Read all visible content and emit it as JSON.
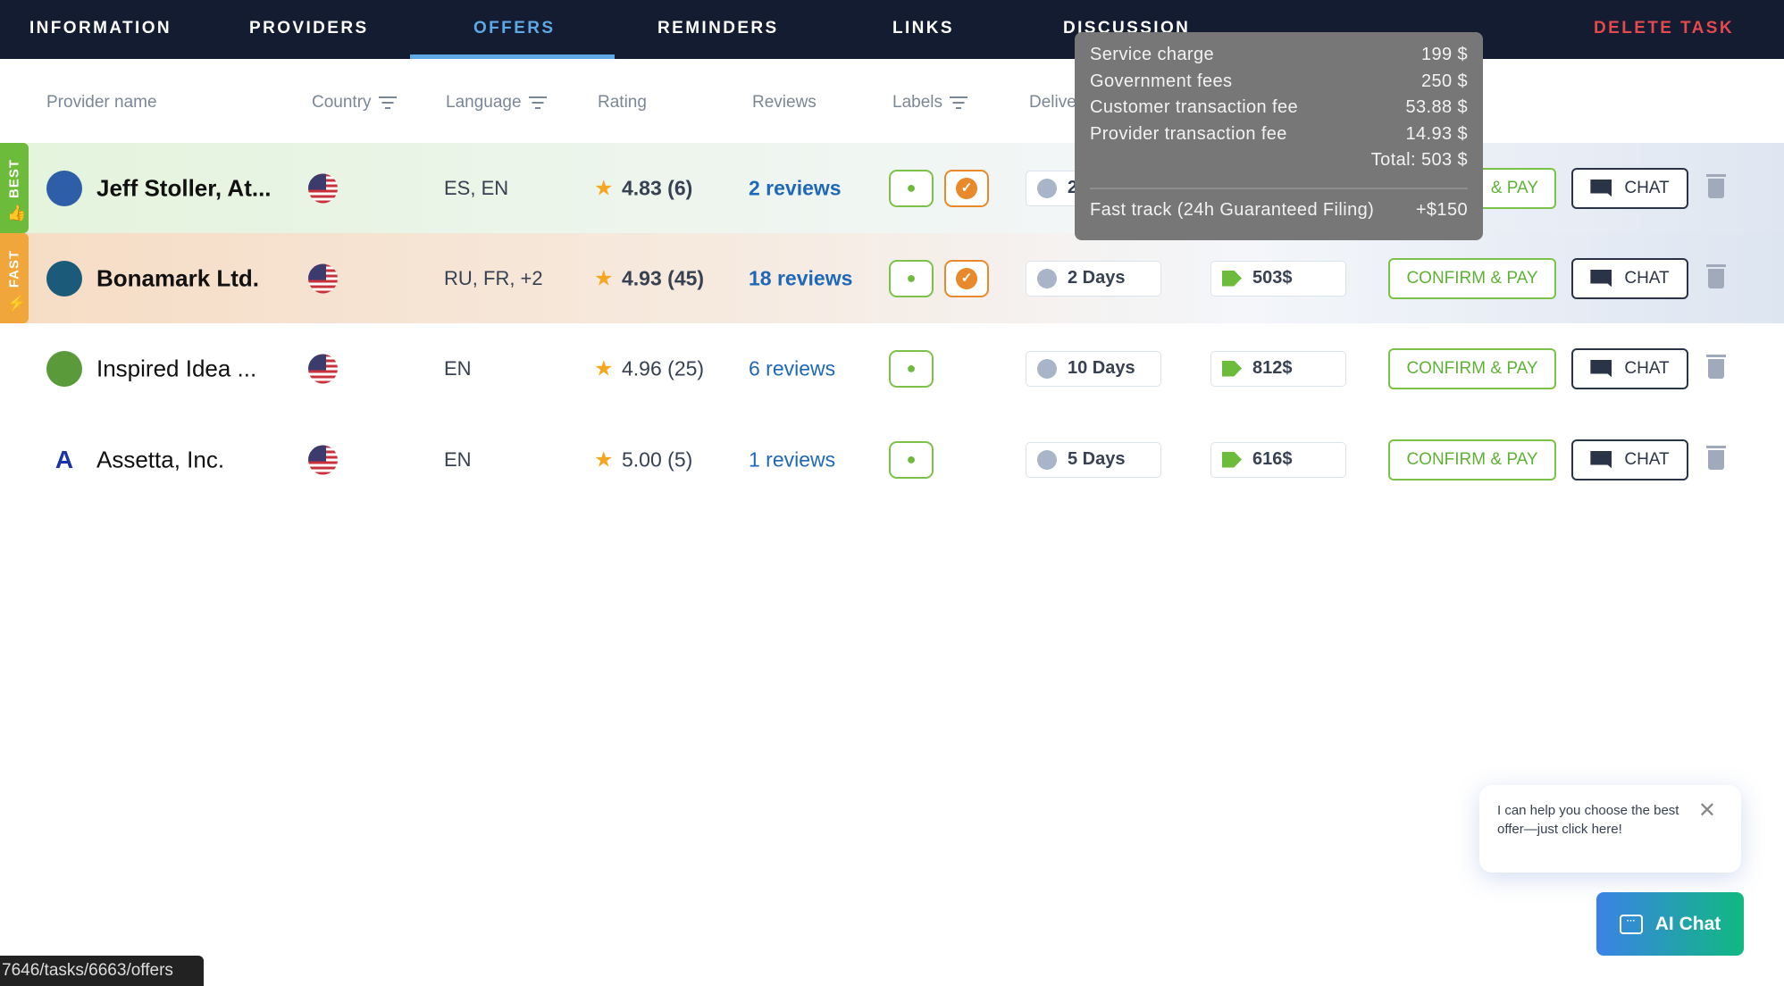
{
  "nav": {
    "tabs": [
      "INFORMATION",
      "PROVIDERS",
      "OFFERS",
      "REMINDERS",
      "LINKS",
      "DISCUSSION"
    ],
    "active": "OFFERS",
    "delete": "DELETE TASK"
  },
  "columns": [
    "Provider name",
    "Country",
    "Language",
    "Rating",
    "Reviews",
    "Labels",
    "Delive"
  ],
  "rows": [
    {
      "badge": "BEST",
      "badge_color": "#6dbb3a",
      "bg": "linear-gradient(90deg,#e4f4dc,#eef5ee 40%,#f4f7fb 70%,#dfe6f1)",
      "name": "Jeff Stoller, At...",
      "bold": true,
      "lang": "ES, EN",
      "rating": "4.83 (6)",
      "reviews": "2 reviews",
      "verified": true,
      "days": "2",
      "price": "",
      "avatar_color": "#2f5ea8"
    },
    {
      "badge": "FAST",
      "badge_color": "#f0a63a",
      "bg": "linear-gradient(90deg,#f6dcc4,#f6eadf 40%,#f4f6fa 70%,#dde5f1)",
      "name": "Bonamark Ltd.",
      "bold": true,
      "lang": "RU, FR, +2",
      "rating": "4.93 (45)",
      "reviews": "18 reviews",
      "verified": true,
      "days": "2 Days",
      "price": "503$",
      "avatar_color": "#1c5a7a"
    },
    {
      "badge": "",
      "name": "Inspired Idea ...",
      "bold": false,
      "lang": "EN",
      "rating": "4.96 (25)",
      "reviews": "6 reviews",
      "verified": false,
      "days": "10 Days",
      "price": "812$",
      "avatar_color": "#5a9a3a"
    },
    {
      "badge": "",
      "name": "Assetta, Inc.",
      "bold": false,
      "lang": "EN",
      "rating": "5.00 (5)",
      "reviews": "1 reviews",
      "verified": false,
      "days": "5 Days",
      "price": "616$",
      "avatar_color": "#1a33a8"
    }
  ],
  "actions": {
    "confirm": "CONFIRM & PAY",
    "confirm_partial": "& PAY",
    "chat": "CHAT"
  },
  "tooltip": {
    "lines": [
      [
        "Service charge",
        "199 $"
      ],
      [
        "Government fees",
        "250 $"
      ],
      [
        "Customer transaction fee",
        "53.88 $"
      ],
      [
        "Provider transaction fee",
        "14.93 $"
      ]
    ],
    "total": "Total: 503 $",
    "fast_track": "Fast track (24h Guaranteed Filing)",
    "fast_track_price": "+$150"
  },
  "ai": {
    "popup": "I can help you choose the best offer—just click here!",
    "button": "AI Chat"
  },
  "status_url": "7646/tasks/6663/offers"
}
